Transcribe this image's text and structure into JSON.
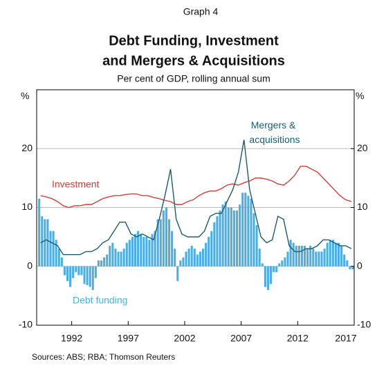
{
  "chart_data": {
    "type": "combo",
    "label": "Graph 4",
    "title": [
      "Debt Funding, Investment",
      "and Mergers & Acquisitions"
    ],
    "subtitle": "Per cent of GDP, rolling annual sum",
    "ylabel": "%",
    "y2label": "%",
    "source": "Sources:   ABS; RBA; Thomson Reuters",
    "xlim": [
      1988.9,
      2017
    ],
    "xticks": [
      1992,
      1997,
      2002,
      2007,
      2012,
      2017
    ],
    "ylim": [
      -10,
      30
    ],
    "yticks": [
      -10,
      0,
      10,
      20
    ],
    "y2lim": [
      -10,
      30
    ],
    "y2ticks": [
      -10,
      0,
      10,
      20
    ],
    "grid": true,
    "series": [
      {
        "name": "Debt funding",
        "type": "bar",
        "color": "#4aaee3",
        "x": [
          1989.125,
          1989.375,
          1989.625,
          1989.875,
          1990.125,
          1990.375,
          1990.625,
          1990.875,
          1991.125,
          1991.375,
          1991.625,
          1991.875,
          1992.125,
          1992.375,
          1992.625,
          1992.875,
          1993.125,
          1993.375,
          1993.625,
          1993.875,
          1994.125,
          1994.375,
          1994.625,
          1994.875,
          1995.125,
          1995.375,
          1995.625,
          1995.875,
          1996.125,
          1996.375,
          1996.625,
          1996.875,
          1997.125,
          1997.375,
          1997.625,
          1997.875,
          1998.125,
          1998.375,
          1998.625,
          1998.875,
          1999.125,
          1999.375,
          1999.625,
          1999.875,
          2000.125,
          2000.375,
          2000.625,
          2000.875,
          2001.125,
          2001.375,
          2001.625,
          2001.875,
          2002.125,
          2002.375,
          2002.625,
          2002.875,
          2003.125,
          2003.375,
          2003.625,
          2003.875,
          2004.125,
          2004.375,
          2004.625,
          2004.875,
          2005.125,
          2005.375,
          2005.625,
          2005.875,
          2006.125,
          2006.375,
          2006.625,
          2006.875,
          2007.125,
          2007.375,
          2007.625,
          2007.875,
          2008.125,
          2008.375,
          2008.625,
          2008.875,
          2009.125,
          2009.375,
          2009.625,
          2009.875,
          2010.125,
          2010.375,
          2010.625,
          2010.875,
          2011.125,
          2011.375,
          2011.625,
          2011.875,
          2012.125,
          2012.375,
          2012.625,
          2012.875,
          2013.125,
          2013.375,
          2013.625,
          2013.875,
          2014.125,
          2014.375,
          2014.625,
          2014.875,
          2015.125,
          2015.375,
          2015.625,
          2015.875,
          2016.125,
          2016.375,
          2016.625,
          2016.875
        ],
        "values": [
          11.5,
          8.5,
          8,
          8,
          6,
          6,
          4.5,
          3,
          1.5,
          -1.5,
          -2.5,
          -3.5,
          -2,
          -1,
          -1.5,
          -1.5,
          -3,
          -3.2,
          -3.5,
          -4,
          -2,
          1,
          1,
          1.5,
          2,
          3.5,
          4,
          3,
          2.5,
          2.5,
          3,
          4,
          4.5,
          5,
          5.5,
          6,
          5.5,
          5,
          5,
          4.5,
          5.5,
          6,
          8,
          8,
          9.5,
          10,
          8,
          6,
          3,
          -2.5,
          1,
          1.5,
          2.5,
          3,
          3.5,
          3,
          2,
          2.5,
          3,
          4,
          5,
          6,
          7.5,
          8.5,
          9.5,
          10.5,
          11,
          10,
          10,
          9.5,
          9.5,
          10.5,
          12.5,
          12.5,
          12,
          11.5,
          9,
          7,
          3,
          0.5,
          -3.5,
          -4,
          -3,
          -1,
          -1,
          0.5,
          1,
          1.5,
          2.5,
          4.5,
          4,
          3.5,
          3.5,
          3.5,
          3.5,
          3,
          3.5,
          3,
          2.5,
          2.5,
          2.5,
          3,
          4,
          4.5,
          4.5,
          4,
          4,
          3.5,
          2,
          1,
          -0.5,
          -0.5
        ]
      },
      {
        "name": "Investment",
        "type": "line",
        "color": "#c8413b",
        "x": [
          1989.25,
          1989.75,
          1990.25,
          1990.75,
          1991.25,
          1991.75,
          1992.25,
          1992.75,
          1993.25,
          1993.75,
          1994.25,
          1994.75,
          1995.25,
          1995.75,
          1996.25,
          1996.75,
          1997.25,
          1997.75,
          1998.25,
          1998.75,
          1999.25,
          1999.75,
          2000.25,
          2000.75,
          2001.25,
          2001.75,
          2002.25,
          2002.75,
          2003.25,
          2003.75,
          2004.25,
          2004.75,
          2005.25,
          2005.75,
          2006.25,
          2006.75,
          2007.25,
          2007.75,
          2008.25,
          2008.75,
          2009.25,
          2009.75,
          2010.25,
          2010.75,
          2011.25,
          2011.75,
          2012.25,
          2012.75,
          2013.25,
          2013.75,
          2014.25,
          2014.75,
          2015.25,
          2015.75,
          2016.25,
          2016.75
        ],
        "values": [
          12,
          11.8,
          11.5,
          11,
          10.3,
          10,
          10.3,
          10.3,
          10.5,
          10.5,
          11,
          11.5,
          11.8,
          12,
          12,
          12.2,
          12.3,
          12.3,
          12,
          12,
          11.7,
          11.5,
          11.2,
          11,
          10.5,
          10.5,
          11,
          11.3,
          12,
          12.5,
          12.8,
          12.8,
          13.2,
          13.8,
          14,
          13.8,
          14.2,
          14.5,
          15,
          15,
          14.8,
          14.5,
          14,
          13.8,
          14.5,
          15.5,
          17,
          17,
          16.5,
          16,
          15,
          14,
          13,
          12,
          11.3,
          11
        ]
      },
      {
        "name": "Mergers & acquisitions",
        "type": "line",
        "color": "#1d5a6c",
        "x": [
          1989.25,
          1989.75,
          1990.25,
          1990.75,
          1991.25,
          1991.75,
          1992.25,
          1992.75,
          1993.25,
          1993.75,
          1994.25,
          1994.75,
          1995.25,
          1995.75,
          1996.25,
          1996.75,
          1997.25,
          1997.75,
          1998.25,
          1998.75,
          1999.25,
          1999.75,
          2000.25,
          2000.75,
          2001.25,
          2001.75,
          2002.25,
          2002.75,
          2003.25,
          2003.75,
          2004.25,
          2004.75,
          2005.25,
          2005.75,
          2006.25,
          2006.75,
          2007.25,
          2007.75,
          2008.25,
          2008.75,
          2009.25,
          2009.75,
          2010.25,
          2010.75,
          2011.25,
          2011.75,
          2012.25,
          2012.75,
          2013.25,
          2013.75,
          2014.25,
          2014.75,
          2015.25,
          2015.75,
          2016.25,
          2016.75
        ],
        "values": [
          4,
          4.5,
          4,
          3.5,
          2,
          2,
          2,
          2,
          2.5,
          2.5,
          3,
          4,
          4.5,
          6,
          7.5,
          7.5,
          5.5,
          5,
          5.5,
          5,
          4.5,
          8,
          12,
          16.5,
          8,
          5.5,
          5,
          5,
          5,
          6,
          8.5,
          9,
          9,
          11,
          13,
          16,
          21.5,
          13,
          9,
          5,
          4,
          4.5,
          8.5,
          8,
          3.5,
          2.5,
          2.5,
          3,
          3,
          3.5,
          4.5,
          4.5,
          4,
          3.5,
          3.5,
          3
        ]
      }
    ]
  }
}
